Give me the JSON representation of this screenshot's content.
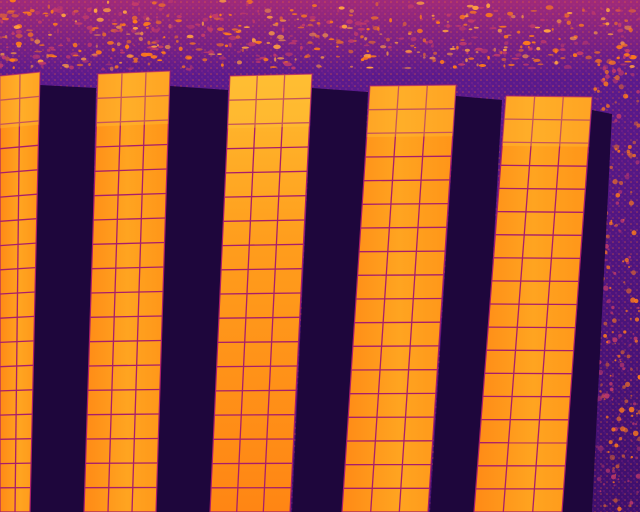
{
  "image": {
    "kind": "thermal-aerial-photo",
    "subject": "solar-panel-rows",
    "palette": {
      "ground_dark": "#2a0a4a",
      "ground_mid": "#5a1a8c",
      "ground_warm": "#c23a6a",
      "vegetation_hot": "#ff7a1a",
      "shadow": "#1e063c",
      "panel_base": "#ff9a1a",
      "panel_hot": "#ffc23a",
      "panel_grid": "#a81e6a"
    },
    "panel_rows": [
      {
        "name": "row-1",
        "cell_columns": 2,
        "cell_rows": 18
      },
      {
        "name": "row-2",
        "cell_columns": 3,
        "cell_rows": 18
      },
      {
        "name": "row-3",
        "cell_columns": 3,
        "cell_rows": 18
      },
      {
        "name": "row-4",
        "cell_columns": 3,
        "cell_rows": 18
      },
      {
        "name": "row-5",
        "cell_columns": 3,
        "cell_rows": 18
      }
    ]
  }
}
